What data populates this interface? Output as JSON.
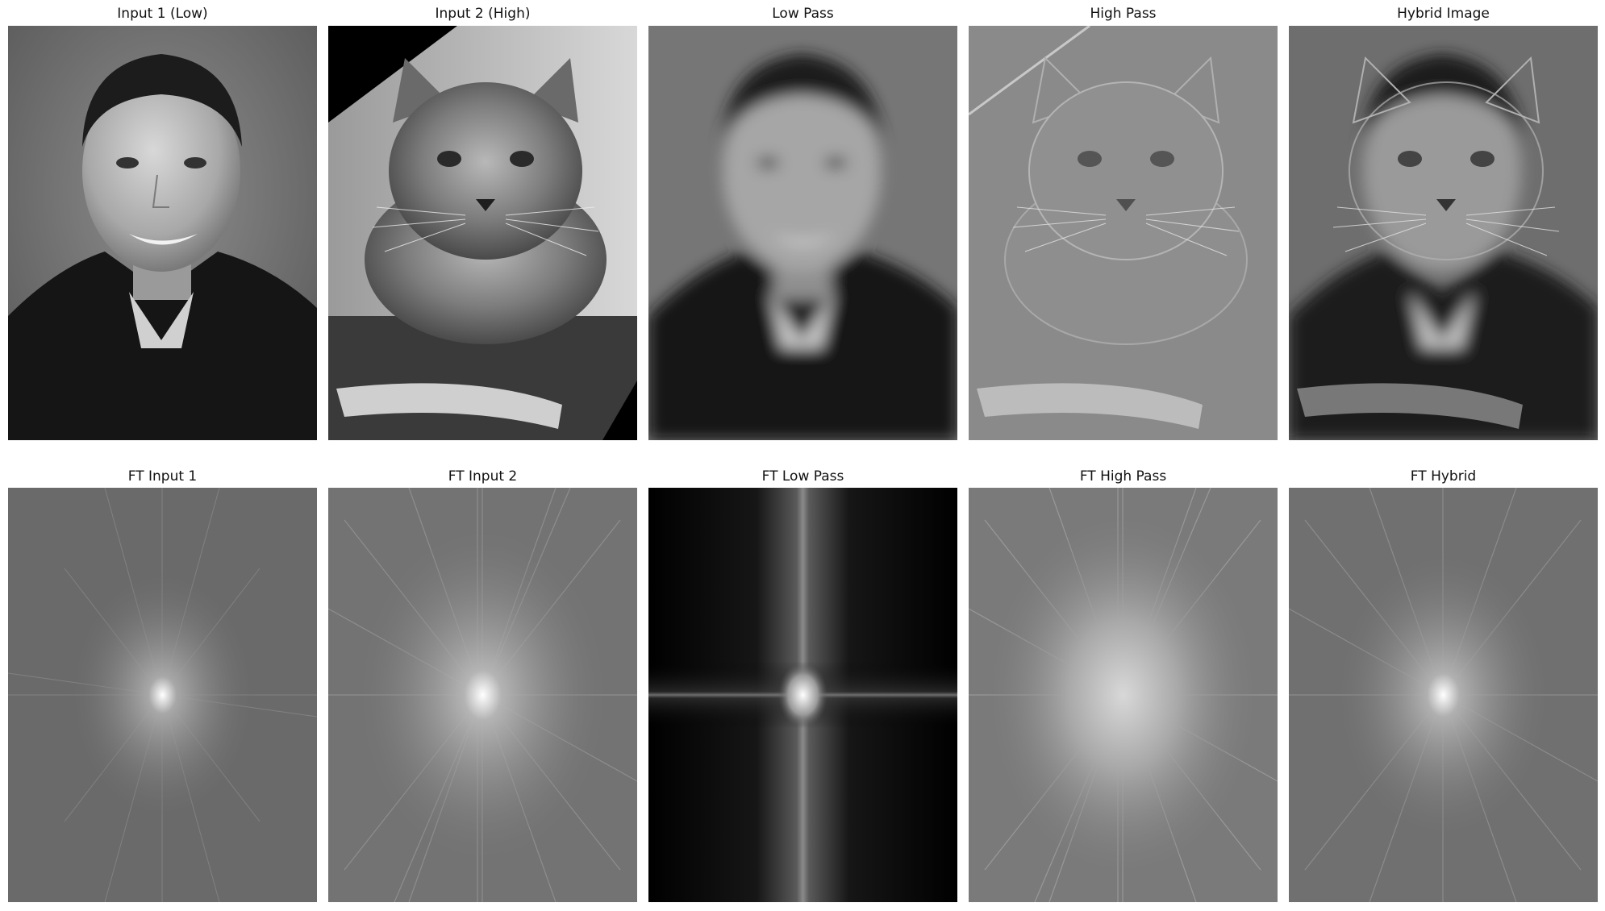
{
  "figure": {
    "rows": [
      {
        "panels": [
          {
            "key": "input1",
            "title": "Input 1 (Low)",
            "content": "photograph-man-portrait"
          },
          {
            "key": "input2",
            "title": "Input 2 (High)",
            "content": "photograph-cat"
          },
          {
            "key": "lowpass",
            "title": "Low Pass",
            "content": "blurred-man-portrait"
          },
          {
            "key": "highpass",
            "title": "High Pass",
            "content": "edge-cat"
          },
          {
            "key": "hybrid",
            "title": "Hybrid Image",
            "content": "hybrid-man-cat"
          }
        ]
      },
      {
        "panels": [
          {
            "key": "ft1",
            "title": "FT Input 1",
            "content": "fourier-spectrum"
          },
          {
            "key": "ft2",
            "title": "FT Input 2",
            "content": "fourier-spectrum"
          },
          {
            "key": "ftlow",
            "title": "FT Low Pass",
            "content": "fourier-spectrum-lowpass"
          },
          {
            "key": "fthigh",
            "title": "FT High Pass",
            "content": "fourier-spectrum"
          },
          {
            "key": "fthybrid",
            "title": "FT Hybrid",
            "content": "fourier-spectrum"
          }
        ]
      }
    ]
  }
}
